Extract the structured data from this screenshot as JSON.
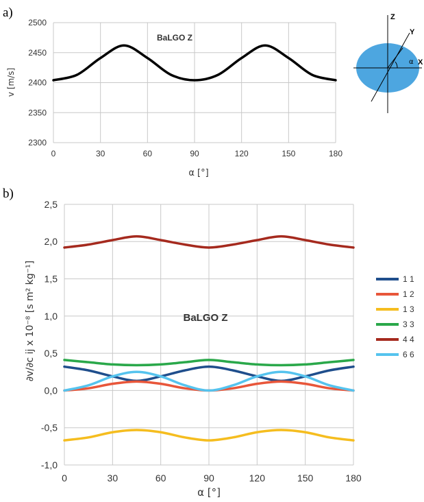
{
  "panel_labels": {
    "a": "a)",
    "b": "b)"
  },
  "diagram": {
    "axis_z": "Z",
    "axis_y": "Y",
    "axis_x": "X",
    "angle": "α",
    "disc_color": "#4da6e0"
  },
  "chart_data": [
    {
      "type": "line",
      "title": "BaLGO  Z",
      "xlabel": "α [°]",
      "ylabel": "v  [m/s]",
      "xlim": [
        0,
        180
      ],
      "ylim": [
        2300,
        2500
      ],
      "xticks": [
        0,
        30,
        60,
        90,
        120,
        150,
        180
      ],
      "xtick_labels": [
        "0",
        "30",
        "60",
        "90",
        "120",
        "150",
        "180"
      ],
      "yticks": [
        2300,
        2350,
        2400,
        2450,
        2500
      ],
      "ytick_labels": [
        "2300",
        "2350",
        "2400",
        "2450",
        "2500"
      ],
      "grid": true,
      "series": [
        {
          "color": "#000000",
          "x": [
            0,
            15,
            30,
            45,
            60,
            75,
            90,
            105,
            120,
            135,
            150,
            165,
            180
          ],
          "values": [
            2404,
            2413,
            2441,
            2462,
            2441,
            2413,
            2404,
            2413,
            2441,
            2462,
            2441,
            2413,
            2404
          ]
        }
      ]
    },
    {
      "type": "line",
      "title": "BaLGO  Z",
      "xlabel": "α [°]",
      "ylabel": "∂v/∂c ij x 10⁻⁸  [s m² kg⁻¹]",
      "xlim": [
        0,
        180
      ],
      "ylim": [
        -1.0,
        2.5
      ],
      "xticks": [
        0,
        30,
        60,
        90,
        120,
        150,
        180
      ],
      "xtick_labels": [
        "0",
        "30",
        "60",
        "90",
        "120",
        "150",
        "180"
      ],
      "yticks": [
        -1.0,
        -0.5,
        0.0,
        0.5,
        1.0,
        1.5,
        2.0,
        2.5
      ],
      "ytick_labels": [
        "-1,0",
        "-0,5",
        "0,0",
        "0,5",
        "1,0",
        "1,5",
        "2,0",
        "2,5"
      ],
      "grid": true,
      "legend_position": "right",
      "series": [
        {
          "name": "1 1",
          "color": "#1f4e8c",
          "x": [
            0,
            15,
            30,
            45,
            60,
            75,
            90,
            105,
            120,
            135,
            150,
            165,
            180
          ],
          "values": [
            0.32,
            0.27,
            0.19,
            0.13,
            0.19,
            0.27,
            0.32,
            0.27,
            0.19,
            0.13,
            0.19,
            0.27,
            0.32
          ]
        },
        {
          "name": "1 2",
          "color": "#e8563a",
          "x": [
            0,
            15,
            30,
            45,
            60,
            75,
            90,
            105,
            120,
            135,
            150,
            165,
            180
          ],
          "values": [
            0.0,
            0.03,
            0.09,
            0.12,
            0.09,
            0.03,
            0.0,
            0.03,
            0.09,
            0.12,
            0.09,
            0.03,
            0.0
          ]
        },
        {
          "name": "1 3",
          "color": "#f5bd1f",
          "x": [
            0,
            15,
            30,
            45,
            60,
            75,
            90,
            105,
            120,
            135,
            150,
            165,
            180
          ],
          "values": [
            -0.67,
            -0.63,
            -0.56,
            -0.53,
            -0.56,
            -0.63,
            -0.67,
            -0.63,
            -0.56,
            -0.53,
            -0.56,
            -0.63,
            -0.67
          ]
        },
        {
          "name": "3 3",
          "color": "#2aa84a",
          "x": [
            0,
            15,
            30,
            45,
            60,
            75,
            90,
            105,
            120,
            135,
            150,
            165,
            180
          ],
          "values": [
            0.41,
            0.38,
            0.35,
            0.34,
            0.35,
            0.38,
            0.41,
            0.38,
            0.35,
            0.34,
            0.35,
            0.38,
            0.41
          ]
        },
        {
          "name": "4 4",
          "color": "#a52a1e",
          "x": [
            0,
            15,
            30,
            45,
            60,
            75,
            90,
            105,
            120,
            135,
            150,
            165,
            180
          ],
          "values": [
            1.92,
            1.96,
            2.02,
            2.07,
            2.02,
            1.96,
            1.92,
            1.96,
            2.02,
            2.07,
            2.02,
            1.96,
            1.92
          ]
        },
        {
          "name": "6 6",
          "color": "#55c3ee",
          "x": [
            0,
            15,
            30,
            45,
            60,
            75,
            90,
            105,
            120,
            135,
            150,
            165,
            180
          ],
          "values": [
            0.0,
            0.07,
            0.19,
            0.25,
            0.19,
            0.07,
            0.0,
            0.07,
            0.19,
            0.25,
            0.19,
            0.07,
            0.0
          ]
        }
      ]
    }
  ]
}
